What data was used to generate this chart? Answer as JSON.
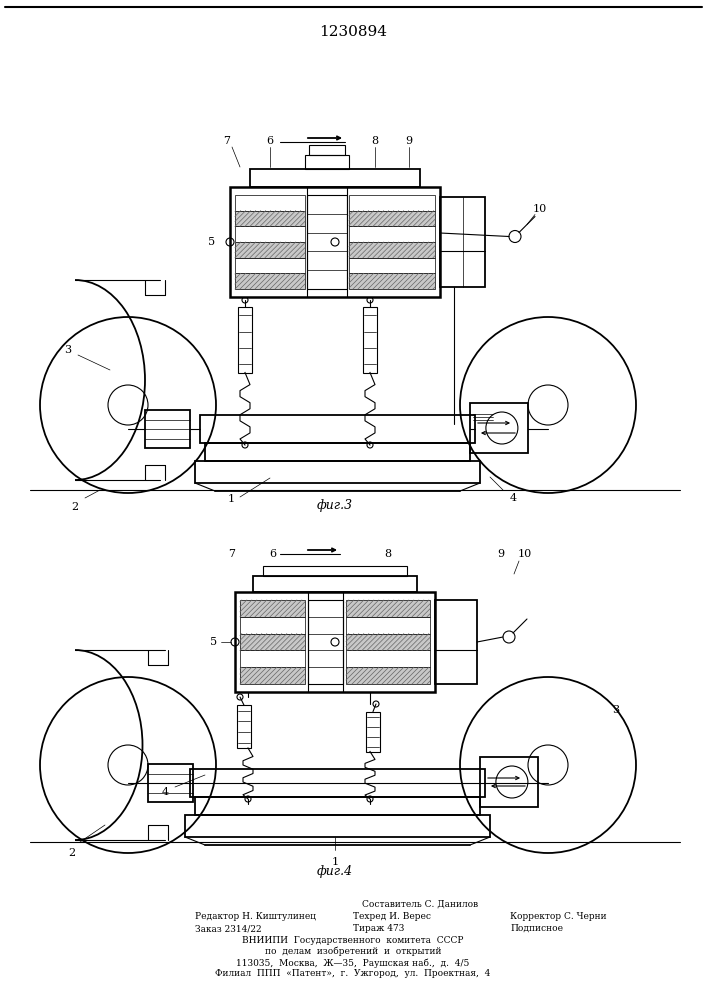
{
  "title": "1230894",
  "fig3_label": "фиг.3",
  "fig4_label": "фиг.4",
  "fig_width": 7.07,
  "fig_height": 10.0,
  "background_color": "#ffffff",
  "line_color": "#000000",
  "footer": {
    "line0": "Составитель С. Данилов",
    "line1_left": "Редактор Н. Киштулинец",
    "line1_mid": "Техред И. Верес",
    "line1_right": "Корректор С. Черни",
    "line2_left": "Заказ 2314/22",
    "line2_mid": "Тираж 473",
    "line2_right": "Подписное",
    "line3": "ВНИИПИ  Государственного  комитета  СССР",
    "line4": "по  делам  изобретений  и  открытий",
    "line5": "113035,  Москва,  Ж—35,  Раушская наб.,  д.  4/5",
    "line6": "Филиал  ППП  «Патент»,  г.  Ужгород,  ул.  Проектная,  4"
  }
}
